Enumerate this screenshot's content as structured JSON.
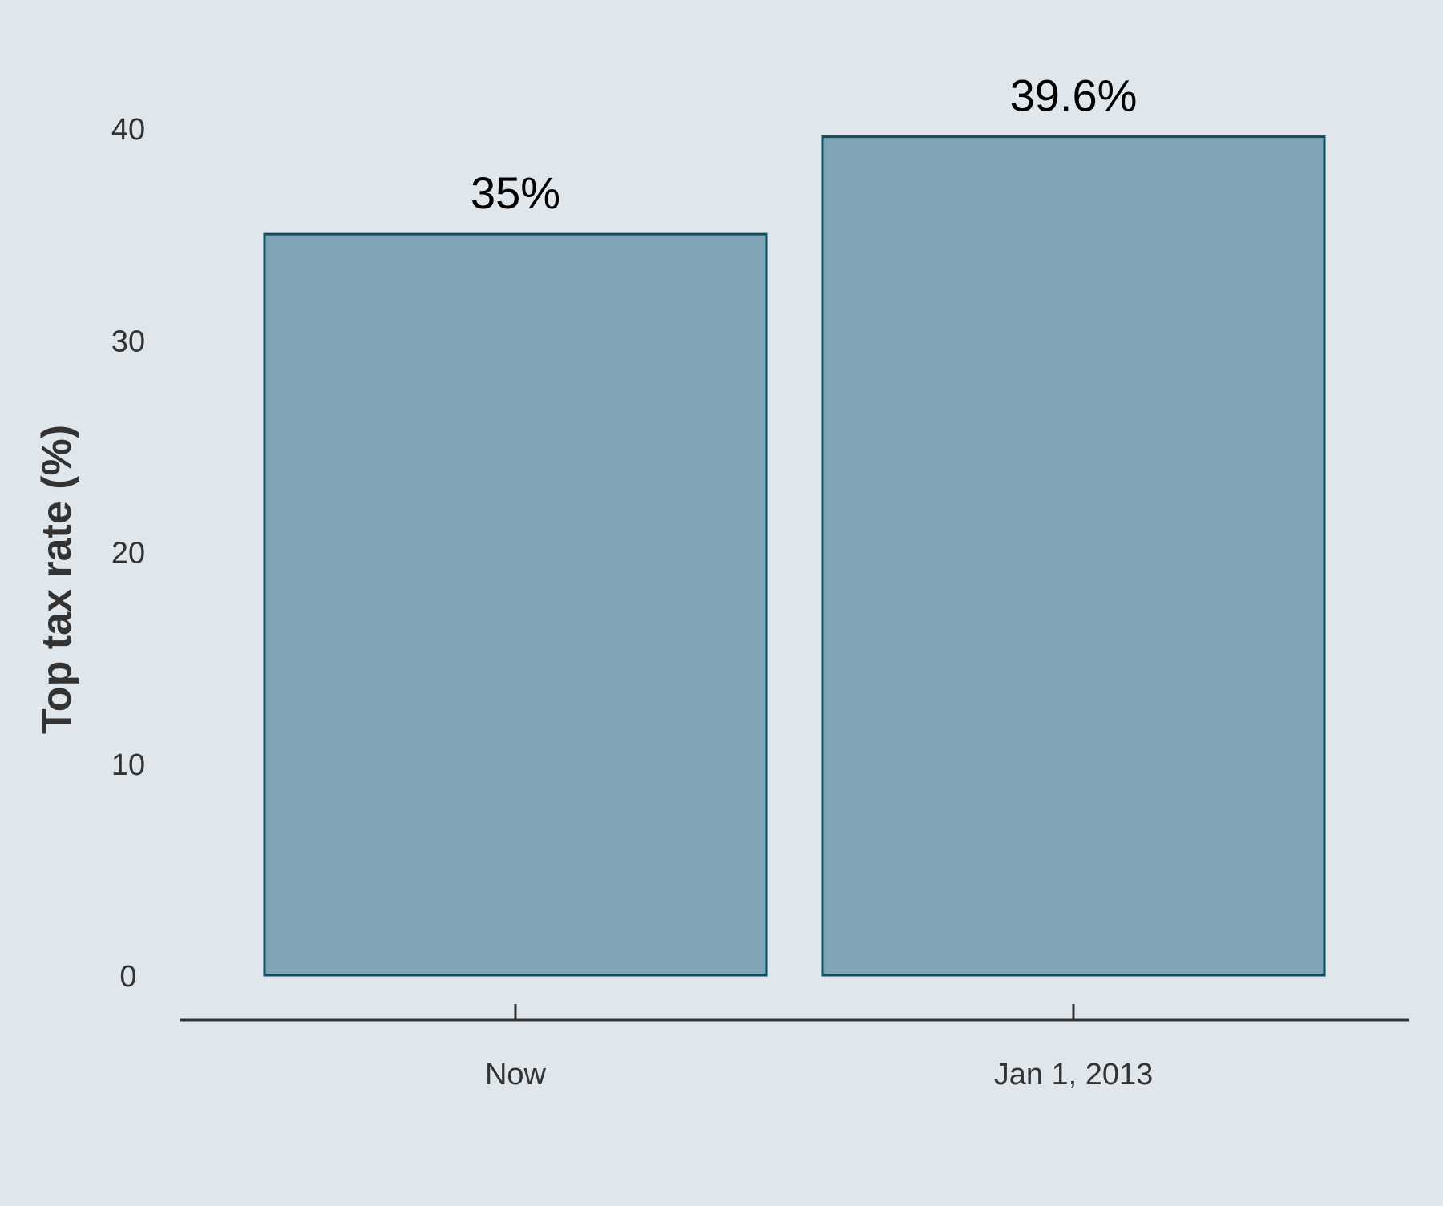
{
  "chart_data": {
    "type": "bar",
    "categories": [
      "Now",
      "Jan 1, 2013"
    ],
    "values": [
      35,
      39.6
    ],
    "data_labels": [
      "35%",
      "39.6%"
    ],
    "title": "",
    "xlabel": "",
    "ylabel": "Top tax rate (%)",
    "ylim": [
      0,
      40
    ],
    "yticks": [
      "0",
      "10",
      "20",
      "30",
      "40"
    ],
    "grid": false,
    "legend": "none"
  },
  "colors": {
    "background": "#dfe6ec",
    "bar_fill": "#7fa4b6",
    "bar_stroke": "#0f4c63",
    "axis": "#333333",
    "text": "#333333"
  }
}
